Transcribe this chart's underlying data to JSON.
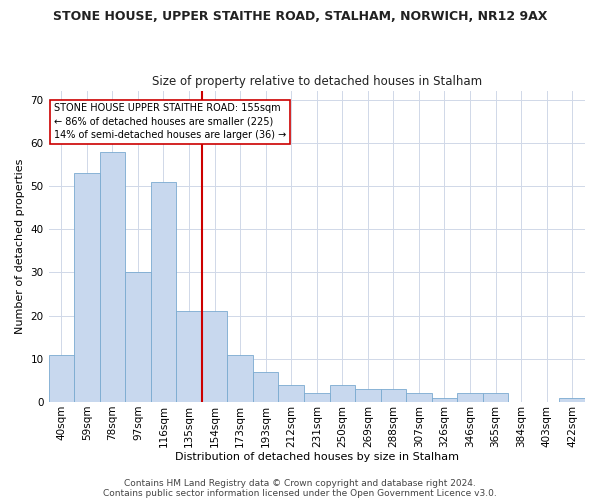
{
  "title": "STONE HOUSE, UPPER STAITHE ROAD, STALHAM, NORWICH, NR12 9AX",
  "subtitle": "Size of property relative to detached houses in Stalham",
  "xlabel": "Distribution of detached houses by size in Stalham",
  "ylabel": "Number of detached properties",
  "categories": [
    "40sqm",
    "59sqm",
    "78sqm",
    "97sqm",
    "116sqm",
    "135sqm",
    "154sqm",
    "173sqm",
    "193sqm",
    "212sqm",
    "231sqm",
    "250sqm",
    "269sqm",
    "288sqm",
    "307sqm",
    "326sqm",
    "346sqm",
    "365sqm",
    "384sqm",
    "403sqm",
    "422sqm"
  ],
  "values": [
    11,
    53,
    58,
    30,
    51,
    21,
    21,
    11,
    7,
    4,
    2,
    4,
    3,
    3,
    2,
    1,
    2,
    2,
    0,
    0,
    1
  ],
  "bar_color": "#c8d8ee",
  "bar_edge_color": "#7aaad0",
  "highlight_index": 6,
  "highlight_color": "#cc0000",
  "ylim": [
    0,
    72
  ],
  "yticks": [
    0,
    10,
    20,
    30,
    40,
    50,
    60,
    70
  ],
  "annotation_text": "STONE HOUSE UPPER STAITHE ROAD: 155sqm\n← 86% of detached houses are smaller (225)\n14% of semi-detached houses are larger (36) →",
  "footer1": "Contains HM Land Registry data © Crown copyright and database right 2024.",
  "footer2": "Contains public sector information licensed under the Open Government Licence v3.0.",
  "bg_color": "#ffffff",
  "plot_bg_color": "#ffffff",
  "annotation_box_color": "#ffffff",
  "annotation_box_edge": "#cc0000",
  "grid_color": "#d0d8e8",
  "title_fontsize": 9,
  "subtitle_fontsize": 8.5,
  "ylabel_fontsize": 8,
  "xlabel_fontsize": 8,
  "tick_fontsize": 7.5,
  "footer_fontsize": 6.5
}
